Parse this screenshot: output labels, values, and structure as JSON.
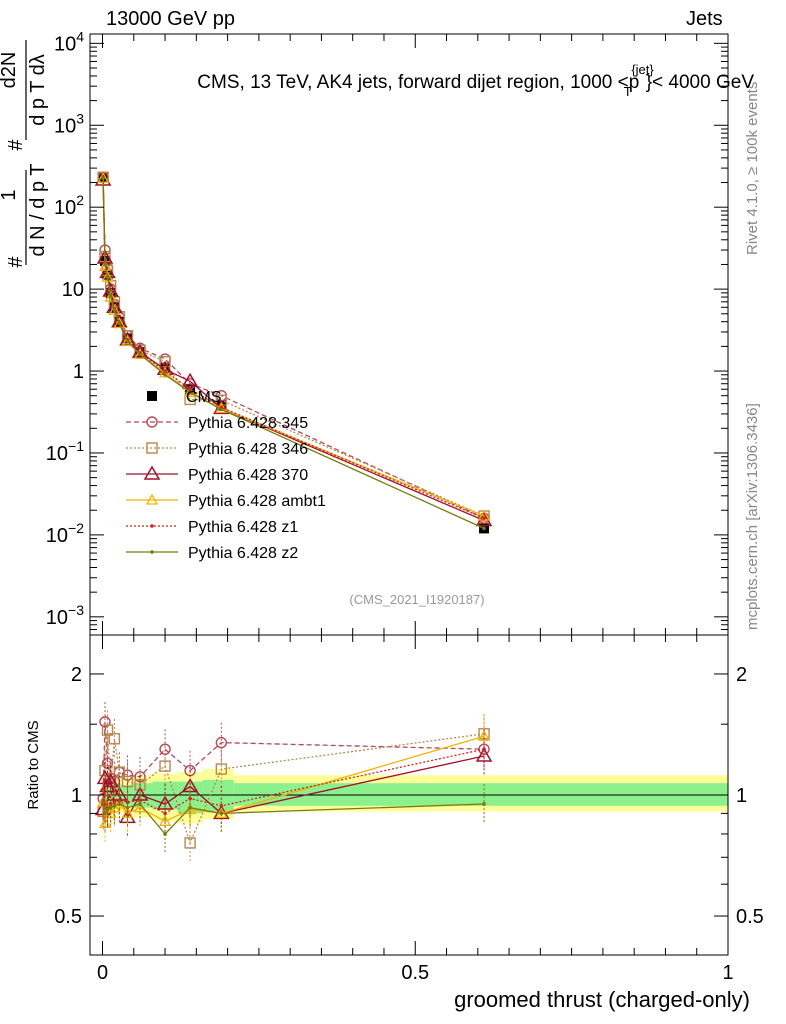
{
  "header": {
    "left": "13000 GeV pp",
    "right": "Jets"
  },
  "side_text": {
    "rivet": "Rivet 4.1.0, ≥ 100k events",
    "mcplots": "mcplots.cern.ch [arXiv:1306.3436]"
  },
  "colors": {
    "cms": "#000000",
    "p345": "#b5485a",
    "p346": "#b58a4f",
    "p370": "#a0102c",
    "ambt1": "#f0b400",
    "z1": "#d42020",
    "z2": "#7a7a10",
    "band_inner": "#8cf08c",
    "band_outer": "#ffff99"
  },
  "chart_data": [
    {
      "type": "line",
      "title": "CMS, 13 TeV, AK4 jets, forward dijet region, 1000 <p_T^{jet}< 4000 GeV",
      "title_parts": {
        "main": "CMS, 13 TeV, AK4 jets, forward dijet region, 1000 <p",
        "sup": "{jet}",
        "sub": "T",
        "tail": "}< 4000 GeV"
      },
      "ylabel": "1/(dN/dp_T) dN^2/(dp_T dλ)",
      "ylabel_parts": {
        "one": "1",
        "left": "d N / d p",
        "left_sub": "T",
        "right": "d p",
        "right_sub": "T",
        "right2": " dλ",
        "num": "d",
        "num_sup": "2",
        "num2": "N",
        "hash": "#"
      },
      "yscale": "log",
      "ylim": [
        0.0006,
        13000
      ],
      "xlim": [
        -0.02,
        1.0
      ],
      "yticks": [
        {
          "v": 0.001,
          "base": "10",
          "exp": "−3"
        },
        {
          "v": 0.01,
          "base": "10",
          "exp": "−2"
        },
        {
          "v": 0.1,
          "base": "10",
          "exp": "−1"
        },
        {
          "v": 1,
          "base": "1",
          "exp": ""
        },
        {
          "v": 10,
          "base": "10",
          "exp": ""
        },
        {
          "v": 100,
          "base": "10",
          "exp": "2"
        },
        {
          "v": 1000,
          "base": "10",
          "exp": "3"
        },
        {
          "v": 10000,
          "base": "10",
          "exp": "4"
        }
      ],
      "watermark": "(CMS_2021_I1920187)",
      "legend_position": "center-left",
      "legend": [
        {
          "key": "cms",
          "label": "CMS",
          "marker": "square",
          "style": "none"
        },
        {
          "key": "p345",
          "label": "Pythia 6.428 345",
          "marker": "circle",
          "style": "dashed"
        },
        {
          "key": "p346",
          "label": "Pythia 6.428 346",
          "marker": "square-open",
          "style": "dotted"
        },
        {
          "key": "p370",
          "label": "Pythia 6.428 370",
          "marker": "triangle",
          "style": "solid"
        },
        {
          "key": "ambt1",
          "label": "Pythia 6.428 ambt1",
          "marker": "triangle-small",
          "style": "solid"
        },
        {
          "key": "z1",
          "label": "Pythia 6.428 z1",
          "marker": "dot",
          "style": "dotted"
        },
        {
          "key": "z2",
          "label": "Pythia 6.428 z2",
          "marker": "dot",
          "style": "solid"
        }
      ],
      "x": [
        0.001,
        0.004,
        0.008,
        0.013,
        0.019,
        0.027,
        0.04,
        0.06,
        0.1,
        0.14,
        0.19,
        0.61
      ],
      "series": [
        {
          "name": "CMS",
          "key": "cms",
          "values": [
            235,
            22,
            15,
            9,
            6,
            4,
            2.5,
            1.7,
            1.1,
            0.6,
            0.38,
            0.012
          ]
        },
        {
          "name": "Pythia 6.428 345",
          "key": "p345",
          "values": [
            230,
            30,
            18,
            10,
            6.5,
            4.5,
            2.7,
            1.9,
            1.4,
            0.7,
            0.5,
            0.016
          ]
        },
        {
          "name": "Pythia 6.428 346",
          "key": "p346",
          "values": [
            232,
            25,
            17,
            11,
            7,
            4.6,
            2.7,
            1.8,
            1.3,
            0.45,
            0.44,
            0.017
          ]
        },
        {
          "name": "Pythia 6.428 370",
          "key": "p370",
          "values": [
            215,
            24,
            16,
            9.5,
            6,
            4,
            2.4,
            1.7,
            1.05,
            0.75,
            0.35,
            0.015
          ]
        },
        {
          "name": "Pythia 6.428 ambt1",
          "key": "ambt1",
          "values": [
            225,
            19,
            14,
            8,
            5.5,
            3.8,
            2.3,
            1.6,
            0.95,
            0.55,
            0.35,
            0.017
          ]
        },
        {
          "name": "Pythia 6.428 z1",
          "key": "z1",
          "values": [
            228,
            21,
            14,
            8.5,
            5.8,
            3.9,
            2.4,
            1.65,
            1.0,
            0.6,
            0.36,
            0.016
          ]
        },
        {
          "name": "Pythia 6.428 z2",
          "key": "z2",
          "values": [
            226,
            20,
            14,
            8.2,
            5.6,
            3.8,
            2.3,
            1.6,
            0.9,
            0.55,
            0.34,
            0.012
          ]
        }
      ]
    },
    {
      "type": "line",
      "ylabel": "Ratio to CMS",
      "xlabel": "groomed thrust (charged-only)",
      "yscale": "log",
      "ylim": [
        0.4,
        2.5
      ],
      "xlim": [
        -0.02,
        1.0
      ],
      "yticks": [
        {
          "v": 0.5,
          "label": "0.5"
        },
        {
          "v": 1,
          "label": "1"
        },
        {
          "v": 2,
          "label": "2"
        }
      ],
      "xticks": [
        {
          "v": 0,
          "label": "0"
        },
        {
          "v": 0.5,
          "label": "0.5"
        },
        {
          "v": 1,
          "label": "1"
        }
      ],
      "band": {
        "x": [
          0.0,
          0.005,
          0.02,
          0.05,
          0.08,
          0.12,
          0.16,
          0.21,
          1.0
        ],
        "inner_lo": [
          0.93,
          0.92,
          0.94,
          0.93,
          0.92,
          0.9,
          0.91,
          0.94
        ],
        "inner_hi": [
          1.07,
          1.08,
          1.06,
          1.07,
          1.08,
          1.08,
          1.09,
          1.07
        ],
        "outer_lo": [
          0.89,
          0.88,
          0.9,
          0.88,
          0.86,
          0.85,
          0.87,
          0.91
        ],
        "outer_hi": [
          1.12,
          1.13,
          1.1,
          1.12,
          1.13,
          1.14,
          1.16,
          1.12
        ]
      },
      "x": [
        0.001,
        0.004,
        0.008,
        0.013,
        0.019,
        0.027,
        0.04,
        0.06,
        0.1,
        0.14,
        0.19,
        0.61
      ],
      "series": [
        {
          "name": "Pythia 6.428 345",
          "key": "p345",
          "values": [
            0.98,
            1.52,
            1.2,
            1.1,
            1.08,
            1.14,
            1.12,
            1.11,
            1.3,
            1.15,
            1.35,
            1.3
          ]
        },
        {
          "name": "Pythia 6.428 346",
          "key": "p346",
          "values": [
            0.91,
            1.15,
            1.45,
            1.05,
            1.38,
            1.14,
            1.08,
            1.06,
            1.18,
            0.76,
            1.16,
            1.42
          ]
        },
        {
          "name": "Pythia 6.428 370",
          "key": "p370",
          "values": [
            0.92,
            1.1,
            1.05,
            1.08,
            1.0,
            1.0,
            0.88,
            1.0,
            0.95,
            1.05,
            0.9,
            1.25
          ]
        },
        {
          "name": "Pythia 6.428 ambt1",
          "key": "ambt1",
          "values": [
            0.96,
            0.85,
            0.93,
            0.9,
            0.93,
            0.95,
            0.9,
            0.93,
            0.86,
            0.92,
            0.9,
            1.4
          ]
        },
        {
          "name": "Pythia 6.428 z1",
          "key": "z1",
          "values": [
            0.97,
            0.95,
            0.93,
            0.95,
            0.96,
            0.97,
            0.96,
            0.97,
            0.9,
            0.98,
            0.94,
            1.3
          ]
        },
        {
          "name": "Pythia 6.428 z2",
          "key": "z2",
          "values": [
            0.96,
            0.9,
            0.92,
            0.93,
            0.94,
            0.95,
            0.93,
            0.95,
            0.8,
            0.93,
            0.9,
            0.95
          ]
        }
      ]
    }
  ]
}
